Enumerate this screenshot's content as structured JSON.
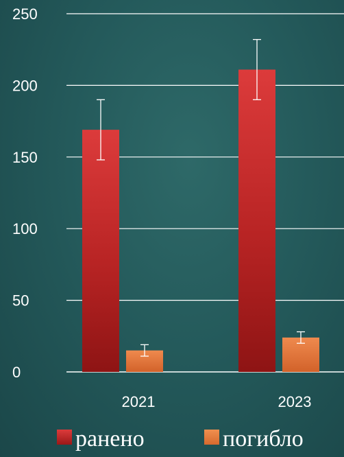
{
  "chart_data": {
    "type": "bar",
    "categories": [
      "2021",
      "2023"
    ],
    "series": [
      {
        "name": "ранено",
        "values": [
          169,
          211
        ],
        "error_low": [
          148,
          190
        ],
        "error_high": [
          190,
          232
        ],
        "color": "#c62828"
      },
      {
        "name": "погибло",
        "values": [
          15,
          24
        ],
        "error_low": [
          11,
          20
        ],
        "error_high": [
          19,
          28
        ],
        "color": "#e8743b"
      }
    ],
    "ylim": [
      0,
      250
    ],
    "yticks": [
      0,
      50,
      100,
      150,
      200,
      250
    ],
    "grid": true,
    "legend": "bottom",
    "title": "",
    "xlabel": "",
    "ylabel": ""
  }
}
